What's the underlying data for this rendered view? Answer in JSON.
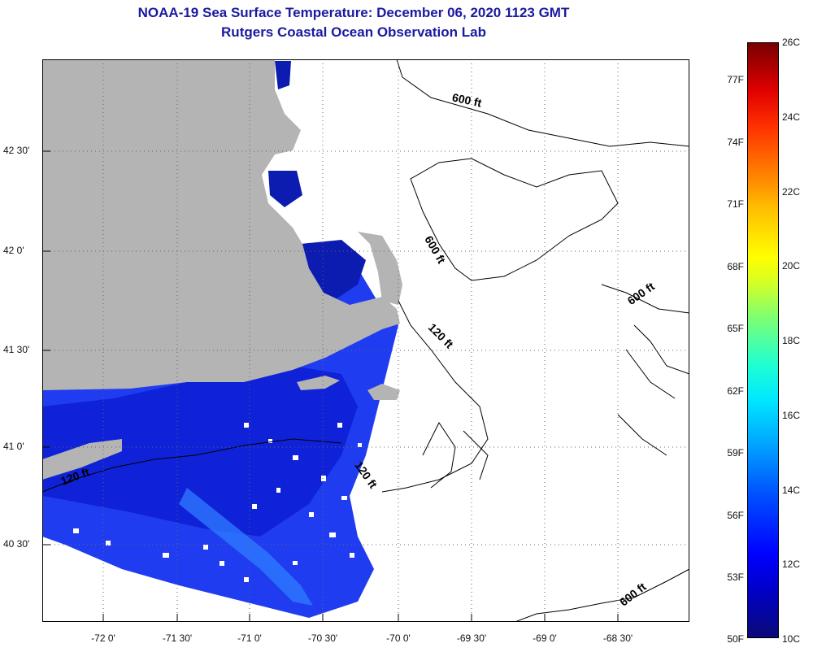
{
  "title": {
    "line1": "NOAA-19 Sea Surface Temperature:  December 06, 2020 1123 GMT",
    "line2": "Rutgers Coastal Ocean Observation Lab"
  },
  "colors": {
    "land": "#b4b4b4",
    "cloud_nodata": "#ffffff",
    "title_text": "#1a1aa0",
    "sst_dark": "#0000a0",
    "sst_mid": "#1a40ff",
    "sst_light": "#3aa0ff"
  },
  "map": {
    "lat_labels": [
      "42 30'",
      "42 0'",
      "41 30'",
      "41 0'",
      "40 30'"
    ],
    "lon_labels": [
      "-72 0'",
      "-71 30'",
      "-71 0'",
      "-70 30'",
      "-70 0'",
      "-69 30'",
      "-69 0'",
      "-68 30'"
    ],
    "contour_labels": [
      "600 ft",
      "600 ft",
      "600 ft",
      "120 ft",
      "120 ft",
      "120 ft",
      "600 ft"
    ]
  },
  "colorbar": {
    "fahrenheit": [
      "77F",
      "74F",
      "71F",
      "68F",
      "65F",
      "62F",
      "59F",
      "56F",
      "53F",
      "50F"
    ],
    "celsius": [
      "26C",
      "24C",
      "22C",
      "20C",
      "18C",
      "16C",
      "14C",
      "12C",
      "10C"
    ]
  }
}
